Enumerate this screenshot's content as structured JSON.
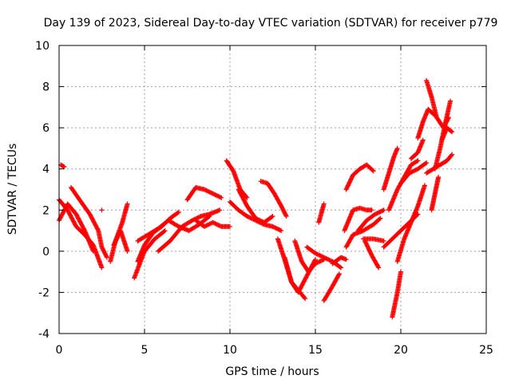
{
  "chart_data": {
    "type": "scatter",
    "title": "Day 139 of 2023, Sidereal Day-to-day VTEC variation (SDTVAR) for receiver p779",
    "xlabel": "GPS time / hours",
    "ylabel": "SDTVAR / TECUs",
    "xlim": [
      0,
      25
    ],
    "ylim": [
      -4,
      10
    ],
    "xticks": [
      "0",
      "5",
      "10",
      "15",
      "20",
      "25"
    ],
    "yticks": [
      "-4",
      "-2",
      "0",
      "2",
      "4",
      "6",
      "8",
      "10"
    ],
    "grid": true,
    "marker": "plus",
    "color": "#ff0000",
    "tracks": [
      {
        "x": [
          0.0,
          0.5,
          1.0,
          1.5,
          2.0,
          2.5
        ],
        "y": [
          2.5,
          2.0,
          1.2,
          0.8,
          0.3,
          -0.8
        ]
      },
      {
        "x": [
          0.0,
          0.5,
          1.0,
          1.5,
          2.0
        ],
        "y": [
          1.5,
          2.3,
          1.8,
          1.0,
          0.0
        ]
      },
      {
        "x": [
          0.1,
          0.3
        ],
        "y": [
          4.2,
          4.1
        ]
      },
      {
        "x": [
          0.7,
          1.2,
          1.8,
          2.3,
          2.5,
          2.8
        ],
        "y": [
          3.1,
          2.5,
          1.8,
          1.0,
          0.2,
          -0.3
        ]
      },
      {
        "x": [
          2.5
        ],
        "y": [
          2.0
        ]
      },
      {
        "x": [
          3.0,
          3.3,
          3.7,
          4.0
        ],
        "y": [
          -0.5,
          0.5,
          1.4,
          2.3
        ]
      },
      {
        "x": [
          3.2,
          3.6,
          4.0
        ],
        "y": [
          0.3,
          1.0,
          0.0
        ]
      },
      {
        "x": [
          4.4,
          5.0,
          5.6,
          6.2
        ],
        "y": [
          -1.3,
          0.0,
          0.6,
          1.0
        ]
      },
      {
        "x": [
          4.6,
          5.0,
          5.5,
          6.0,
          6.5,
          7.0
        ],
        "y": [
          -0.5,
          0.3,
          0.9,
          1.2,
          1.6,
          1.9
        ]
      },
      {
        "x": [
          4.6,
          5.2,
          5.8,
          6.4,
          7.0,
          7.6,
          8.2,
          8.8
        ],
        "y": [
          0.5,
          0.8,
          1.1,
          1.5,
          1.2,
          1.0,
          1.3,
          1.7
        ]
      },
      {
        "x": [
          5.8,
          6.5,
          7.2,
          7.8,
          8.3,
          8.8,
          9.4
        ],
        "y": [
          0.0,
          0.5,
          1.2,
          1.5,
          1.7,
          1.8,
          2.0
        ]
      },
      {
        "x": [
          7.5,
          8.0,
          8.5,
          9.0,
          9.5
        ],
        "y": [
          2.5,
          3.1,
          3.0,
          2.8,
          2.6
        ]
      },
      {
        "x": [
          8.0,
          8.5,
          9.0,
          9.5,
          10.0
        ],
        "y": [
          1.5,
          1.2,
          1.4,
          1.2,
          1.2
        ]
      },
      {
        "x": [
          9.8,
          10.2,
          10.6,
          11.0
        ],
        "y": [
          4.4,
          3.9,
          3.0,
          2.6
        ]
      },
      {
        "x": [
          10.0,
          10.5,
          11.0,
          11.5,
          12.0,
          12.5,
          13.0
        ],
        "y": [
          2.4,
          2.0,
          1.7,
          1.5,
          1.3,
          1.2,
          1.0
        ]
      },
      {
        "x": [
          10.5,
          11.0,
          11.5,
          12.0,
          12.5
        ],
        "y": [
          3.0,
          2.2,
          1.6,
          1.4,
          1.7
        ]
      },
      {
        "x": [
          11.8,
          12.2,
          12.6,
          13.0,
          13.3
        ],
        "y": [
          3.4,
          3.3,
          2.8,
          2.2,
          1.7
        ]
      },
      {
        "x": [
          12.8,
          13.2,
          13.6,
          14.0,
          14.4
        ],
        "y": [
          0.6,
          -0.4,
          -1.5,
          -1.9,
          -2.3
        ]
      },
      {
        "x": [
          13.2,
          13.6,
          14.0,
          14.5,
          15.0
        ],
        "y": [
          -0.3,
          -1.5,
          -2.0,
          -1.2,
          -0.4
        ]
      },
      {
        "x": [
          13.8,
          14.2,
          14.6,
          15.0,
          15.5
        ],
        "y": [
          0.5,
          -0.5,
          -1.0,
          -0.6,
          -0.4
        ]
      },
      {
        "x": [
          14.5,
          15.0,
          15.5,
          16.0,
          16.5
        ],
        "y": [
          0.2,
          -0.1,
          -0.3,
          -0.5,
          -0.8
        ]
      },
      {
        "x": [
          15.2,
          15.5
        ],
        "y": [
          1.4,
          2.3
        ]
      },
      {
        "x": [
          15.5,
          16.0,
          16.4
        ],
        "y": [
          -2.4,
          -1.7,
          -1.1
        ]
      },
      {
        "x": [
          16.0,
          16.5,
          16.8
        ],
        "y": [
          -0.6,
          -0.3,
          -0.4
        ]
      },
      {
        "x": [
          16.7,
          17.2,
          17.6,
          18.0,
          18.3
        ],
        "y": [
          1.0,
          2.0,
          2.1,
          2.0,
          2.0
        ]
      },
      {
        "x": [
          16.8,
          17.2,
          17.6,
          18.0,
          18.4
        ],
        "y": [
          3.0,
          3.7,
          4.0,
          4.2,
          3.9
        ]
      },
      {
        "x": [
          16.8,
          17.2,
          17.8,
          18.4,
          18.8
        ],
        "y": [
          0.2,
          0.8,
          1.0,
          1.3,
          1.6
        ]
      },
      {
        "x": [
          17.5,
          18.0,
          18.5,
          19.0
        ],
        "y": [
          1.0,
          1.5,
          1.8,
          2.0
        ]
      },
      {
        "x": [
          17.8,
          18.4,
          19.0
        ],
        "y": [
          0.6,
          0.6,
          0.5
        ]
      },
      {
        "x": [
          17.9,
          18.3,
          18.7
        ],
        "y": [
          0.5,
          -0.2,
          -0.8
        ]
      },
      {
        "x": [
          19.0,
          19.5,
          20.0,
          20.5,
          21.0
        ],
        "y": [
          0.2,
          0.6,
          1.0,
          1.4,
          1.8
        ]
      },
      {
        "x": [
          19.0,
          19.3,
          19.6,
          19.8
        ],
        "y": [
          3.0,
          3.8,
          4.6,
          5.0
        ]
      },
      {
        "x": [
          19.3,
          19.8,
          20.2,
          20.6,
          21.0
        ],
        "y": [
          2.0,
          3.0,
          3.6,
          4.2,
          4.4
        ]
      },
      {
        "x": [
          19.5,
          19.8,
          20.0
        ],
        "y": [
          -3.2,
          -2.0,
          -1.0
        ]
      },
      {
        "x": [
          19.8,
          20.2,
          20.6,
          21.0,
          21.4
        ],
        "y": [
          -0.5,
          0.6,
          1.4,
          2.2,
          3.2
        ]
      },
      {
        "x": [
          20.0,
          20.5,
          21.0,
          21.5
        ],
        "y": [
          3.3,
          3.8,
          4.0,
          4.3
        ]
      },
      {
        "x": [
          20.6,
          21.0,
          21.3
        ],
        "y": [
          4.5,
          4.8,
          5.4
        ]
      },
      {
        "x": [
          21.0,
          21.3,
          21.6,
          22.0
        ],
        "y": [
          5.5,
          6.3,
          6.9,
          6.6
        ]
      },
      {
        "x": [
          21.5,
          21.8,
          22.1,
          22.5,
          22.8
        ],
        "y": [
          8.3,
          7.5,
          6.5,
          6.0,
          6.5
        ]
      },
      {
        "x": [
          21.5,
          21.9,
          22.3,
          22.7,
          23.0
        ],
        "y": [
          3.8,
          4.0,
          4.2,
          4.4,
          4.7
        ]
      },
      {
        "x": [
          21.8,
          22.0,
          22.2
        ],
        "y": [
          2.0,
          2.8,
          3.6
        ]
      },
      {
        "x": [
          22.0,
          22.3,
          22.6,
          22.9
        ],
        "y": [
          4.0,
          5.0,
          6.2,
          7.3
        ]
      },
      {
        "x": [
          22.4,
          22.7,
          23.0
        ],
        "y": [
          5.4,
          6.0,
          5.8
        ]
      }
    ]
  }
}
